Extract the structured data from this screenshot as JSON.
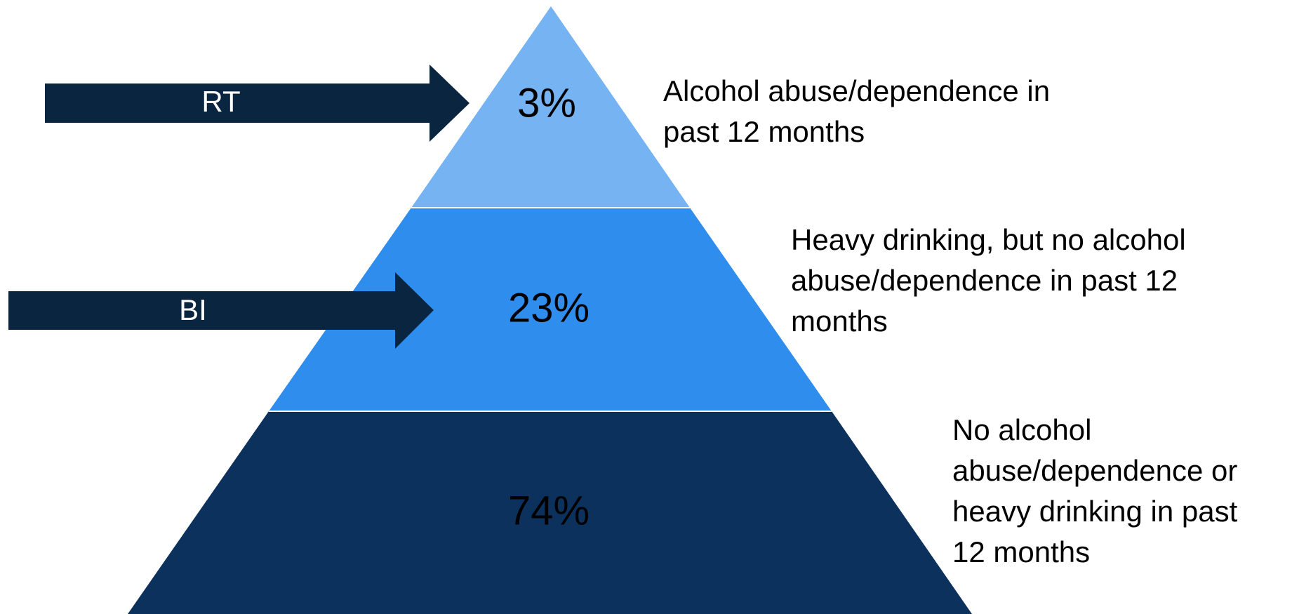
{
  "levels": [
    {
      "percent": "3%",
      "description": [
        "Alcohol abuse/dependence in",
        "past 12 months"
      ]
    },
    {
      "percent": "23%",
      "description": [
        "Heavy drinking, but no alcohol",
        "abuse/dependence in past 12",
        "months"
      ]
    },
    {
      "percent": "74%",
      "description": [
        "No alcohol",
        "abuse/dependence or",
        "heavy drinking in past",
        "12 months"
      ]
    }
  ],
  "arrows": [
    {
      "label": "RT"
    },
    {
      "label": "BI"
    }
  ]
}
